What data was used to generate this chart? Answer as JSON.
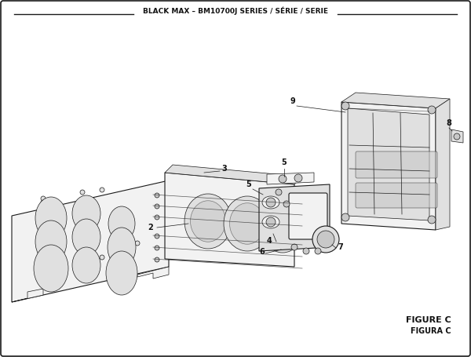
{
  "title": "BLACK MAX – BM10700J SERIES / SÉRIE / SERIE",
  "figure_label": "FIGURE C",
  "figure_label2": "FIGURA C",
  "bg_color": "#ffffff",
  "line_color": "#1a1a1a",
  "text_color": "#111111",
  "fill_light": "#f2f2f2",
  "fill_mid": "#e0e0e0",
  "fill_dark": "#c8c8c8"
}
